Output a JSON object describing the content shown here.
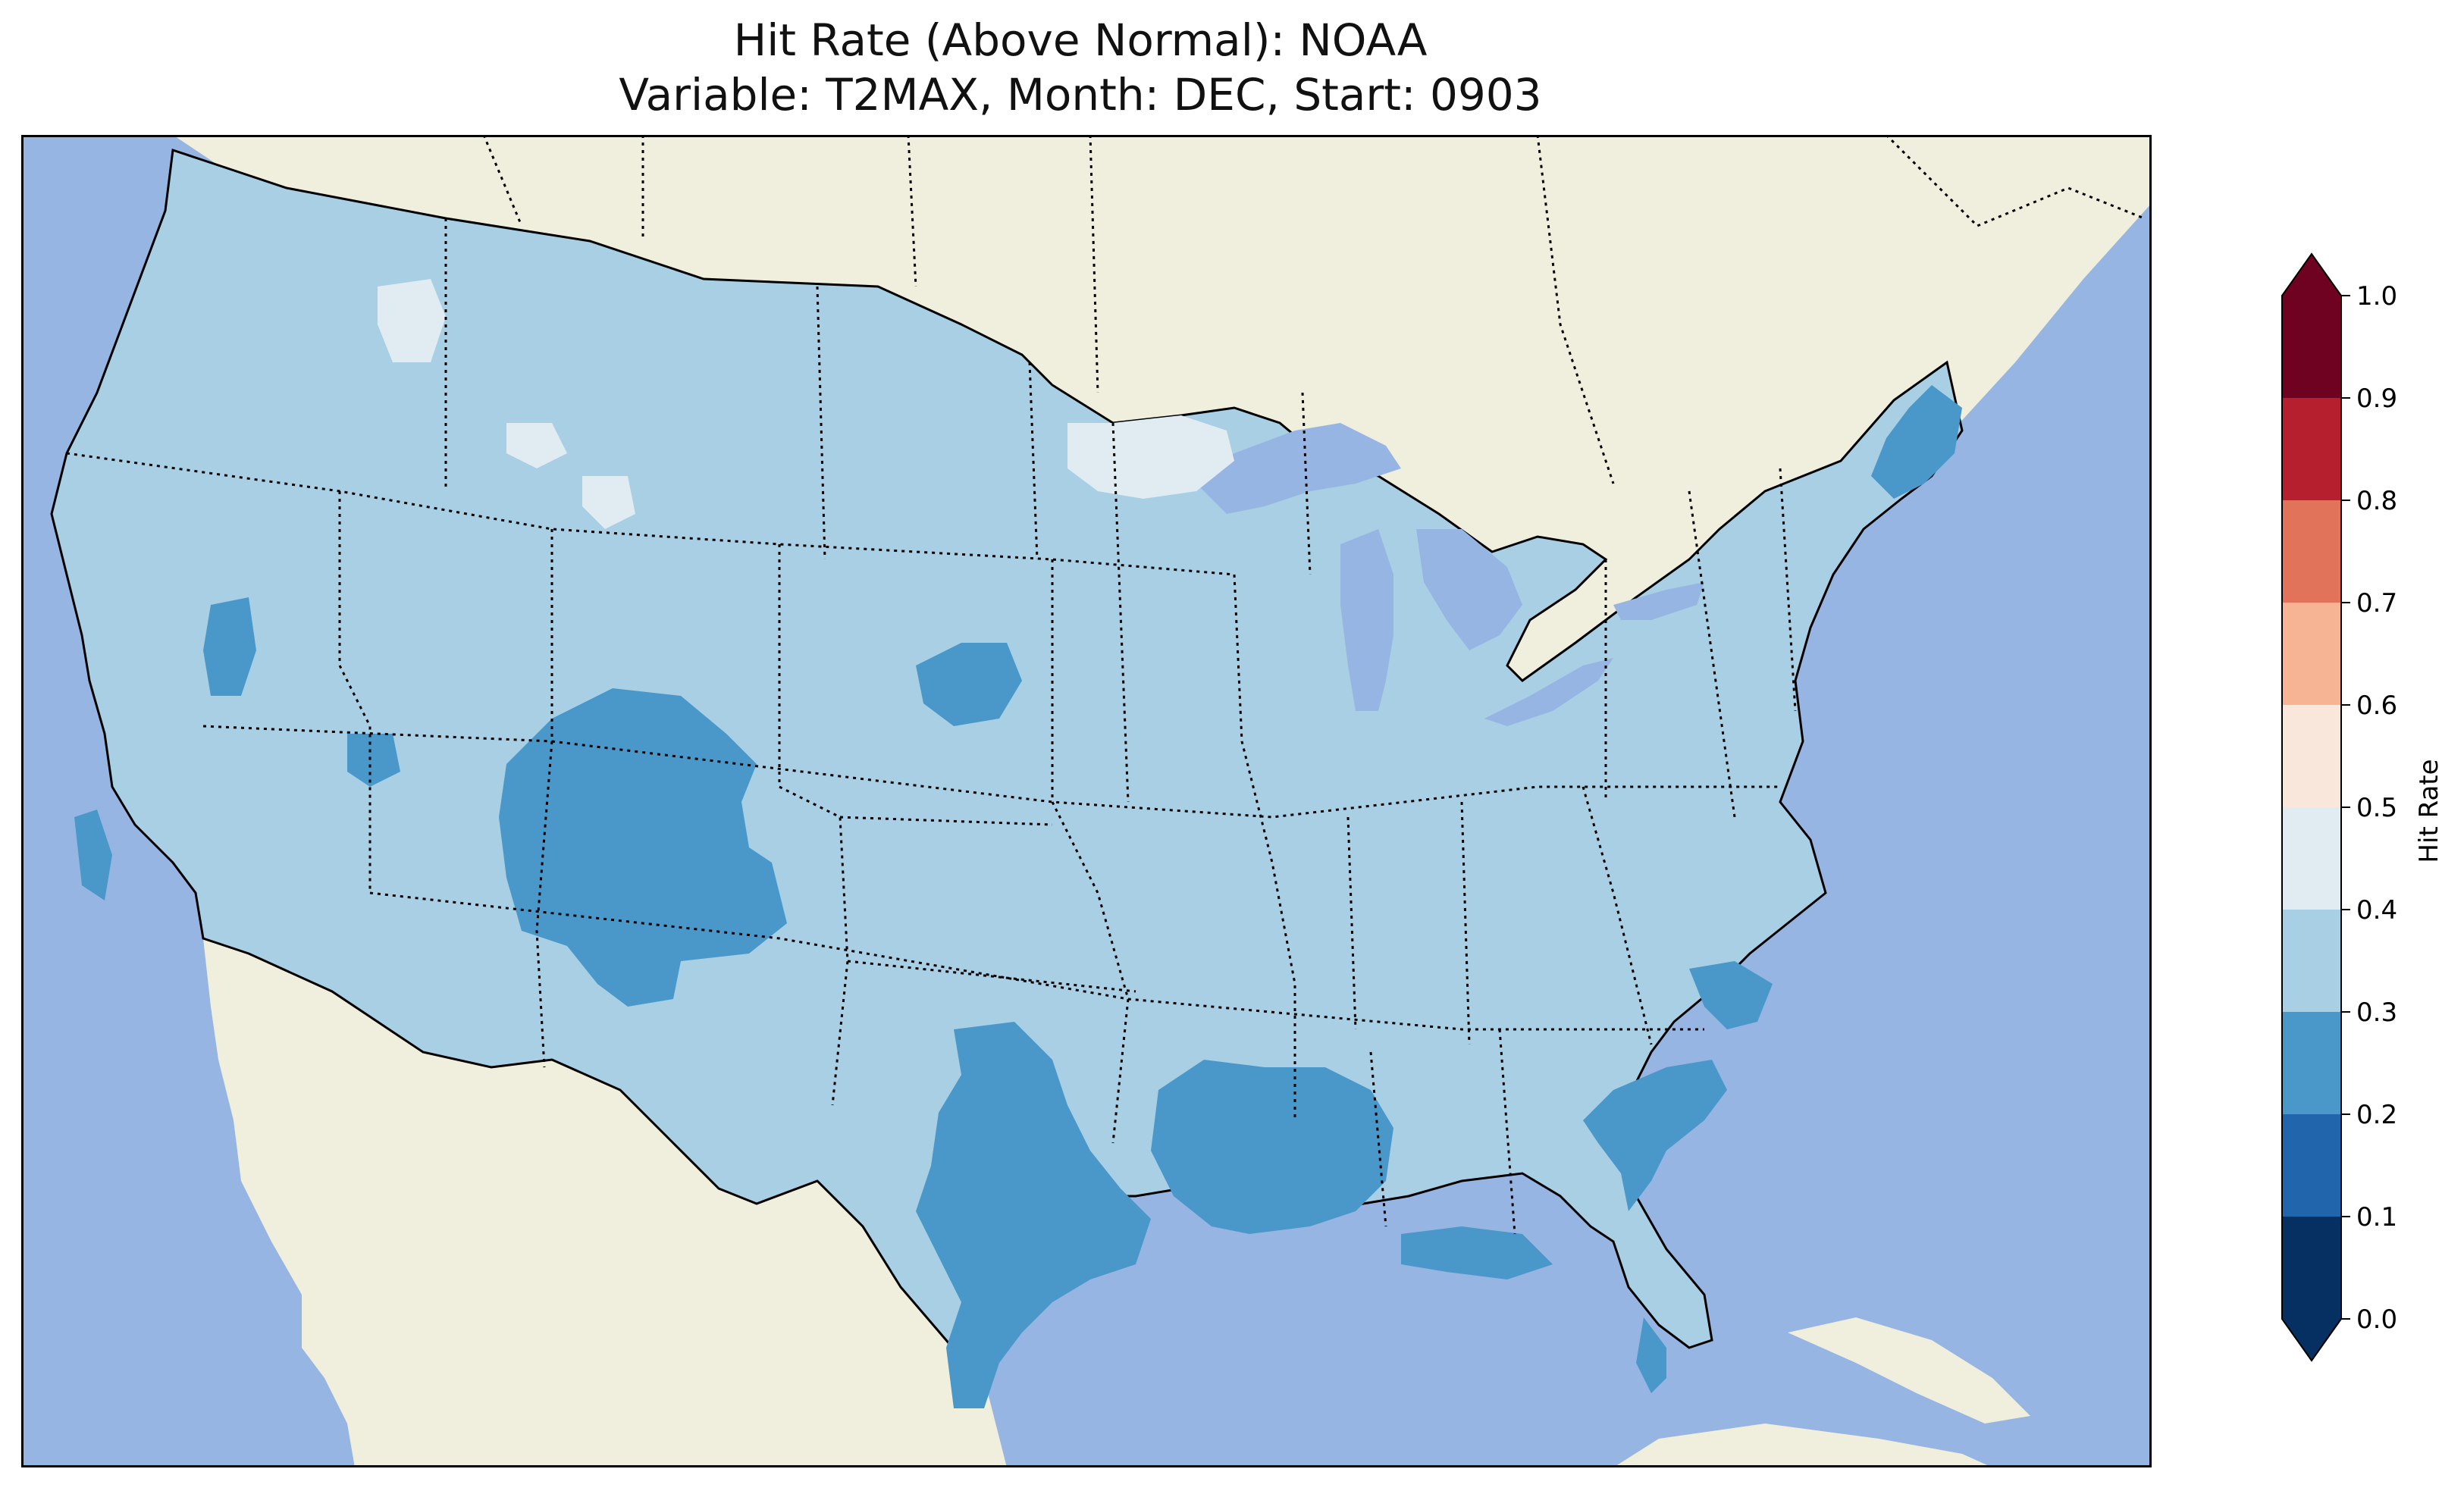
{
  "title": {
    "line1": "Hit Rate (Above Normal): NOAA",
    "line2": "Variable: T2MAX, Month: DEC, Start: 0903"
  },
  "colors": {
    "ocean": "#96b5e2",
    "land_outside": "#f0efdd",
    "coast_line": "#000000"
  },
  "colorbar": {
    "label": "Hit Rate",
    "ticks": [
      "0.0",
      "0.1",
      "0.2",
      "0.3",
      "0.4",
      "0.5",
      "0.6",
      "0.7",
      "0.8",
      "0.9",
      "1.0"
    ],
    "bins": [
      {
        "range": [
          0.0,
          0.1
        ],
        "color": "#053061"
      },
      {
        "range": [
          0.1,
          0.2
        ],
        "color": "#2166ac"
      },
      {
        "range": [
          0.2,
          0.3
        ],
        "color": "#4a98c9"
      },
      {
        "range": [
          0.3,
          0.4
        ],
        "color": "#a8cfe4"
      },
      {
        "range": [
          0.4,
          0.5
        ],
        "color": "#e1ebf2"
      },
      {
        "range": [
          0.5,
          0.6
        ],
        "color": "#fae7dc"
      },
      {
        "range": [
          0.6,
          0.7
        ],
        "color": "#f6b495"
      },
      {
        "range": [
          0.7,
          0.8
        ],
        "color": "#e0735a"
      },
      {
        "range": [
          0.8,
          0.9
        ],
        "color": "#b51f2e"
      },
      {
        "range": [
          0.9,
          1.0
        ],
        "color": "#6e0220"
      }
    ],
    "extend": "both"
  },
  "map": {
    "region": "Contiguous United States",
    "dominant_hit_rate_bin": "0.3-0.4",
    "regions_0_2_to_0_3": [
      "Colorado/Utah/New Mexico",
      "Texas/Oklahoma",
      "Louisiana/Mississippi/Arkansas",
      "Florida panhandle",
      "South Carolina/Georgia coast",
      "North Carolina coast",
      "Maine",
      "NE Nebraska",
      "Northern California",
      "Nevada"
    ],
    "regions_0_4_to_0_5": [
      "Northern Minnesota",
      "Montana/Idaho patches"
    ]
  }
}
